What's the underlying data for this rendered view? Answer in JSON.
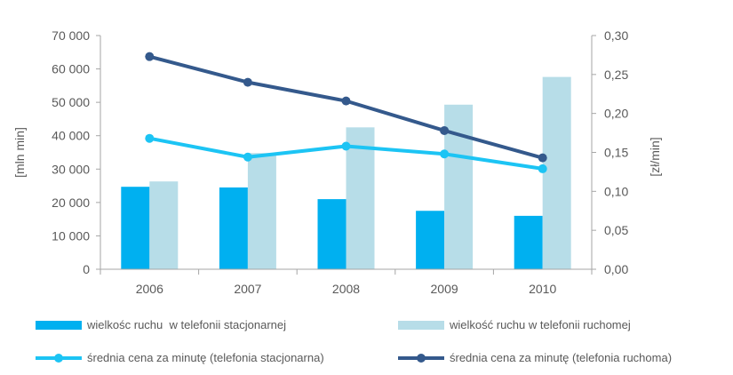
{
  "chart_data": {
    "type": "bar",
    "categories": [
      "2006",
      "2007",
      "2008",
      "2009",
      "2010"
    ],
    "series": [
      {
        "name": "wielkośc ruchu  w telefonii stacjonarnej",
        "type": "bar",
        "axis": "left",
        "color": "#00B0F0",
        "values": [
          24700,
          24500,
          21000,
          17500,
          16000
        ]
      },
      {
        "name": "wielkość ruchu w telefonii ruchomej",
        "type": "bar",
        "axis": "left",
        "color": "#B7DDE8",
        "values": [
          26300,
          34800,
          42500,
          49300,
          57600
        ]
      },
      {
        "name": "średnia cena za minutę (telefonia stacjonarna)",
        "type": "line",
        "axis": "right",
        "color": "#1CC4F4",
        "values": [
          0.168,
          0.144,
          0.158,
          0.148,
          0.129
        ]
      },
      {
        "name": "średnia cena za minutę (telefonia ruchoma)",
        "type": "line",
        "axis": "right",
        "color": "#34598C",
        "values": [
          0.273,
          0.24,
          0.216,
          0.178,
          0.143
        ]
      }
    ],
    "ylabel": "[mln min]",
    "y2label": "[zł/min]",
    "ylim": [
      0,
      70000
    ],
    "y2lim": [
      0,
      0.3
    ],
    "yticks": [
      "0",
      "10 000",
      "20 000",
      "30 000",
      "40 000",
      "50 000",
      "60 000",
      "70 000"
    ],
    "y2ticks": [
      "0,00",
      "0,05",
      "0,10",
      "0,15",
      "0,20",
      "0,25",
      "0,30"
    ],
    "grid": false,
    "legend_position": "bottom"
  }
}
